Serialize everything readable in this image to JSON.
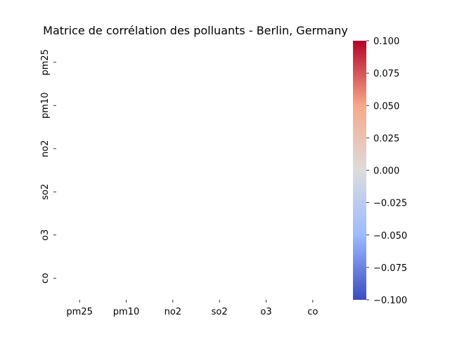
{
  "chart_data": {
    "type": "heatmap",
    "title": "Matrice de corrélation des polluants - Berlin, Germany",
    "xlabel": "",
    "ylabel": "",
    "x_categories": [
      "pm25",
      "pm10",
      "no2",
      "so2",
      "o3",
      "co"
    ],
    "y_categories": [
      "pm25",
      "pm10",
      "no2",
      "so2",
      "o3",
      "co"
    ],
    "values": [],
    "colorbar": {
      "colormap": "coolwarm",
      "range": [
        -0.1,
        0.1
      ],
      "ticks": [
        "0.100",
        "0.075",
        "0.050",
        "0.025",
        "0.000",
        "−0.025",
        "−0.050",
        "−0.075",
        "−0.100"
      ],
      "colors": {
        "top": "#b40426",
        "upper": "#f7a889",
        "mid": "#dddcdc",
        "lower": "#9bbcff",
        "bottom": "#3b4cc0"
      }
    }
  }
}
